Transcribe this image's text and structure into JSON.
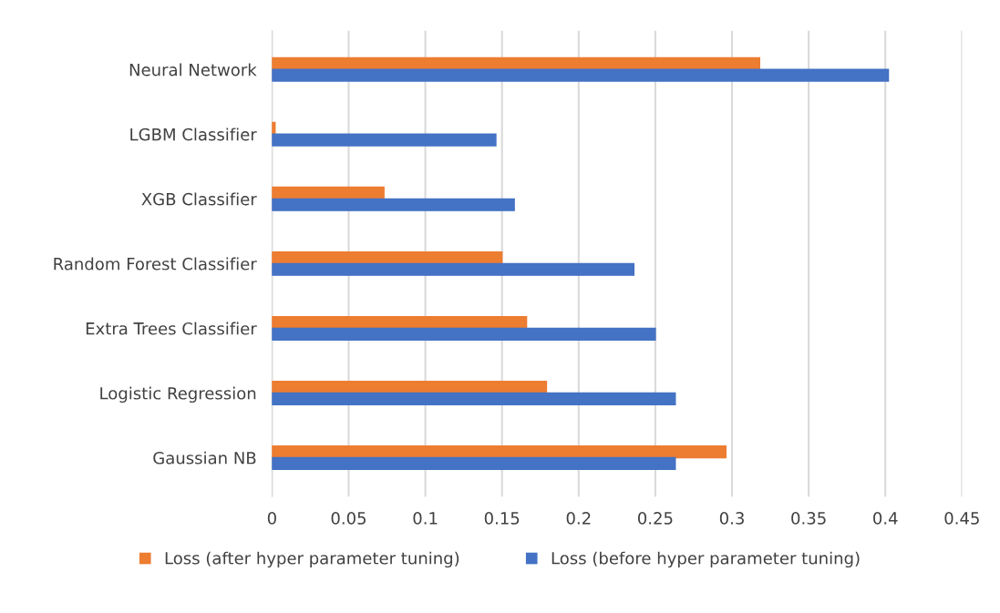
{
  "chart_data": {
    "type": "bar",
    "orientation": "horizontal",
    "categories": [
      "Neural Network",
      "LGBM Classifier",
      "XGB Classifier",
      "Random Forest Classifier",
      "Extra Trees Classifier",
      "Logistic Regression",
      "Gaussian NB"
    ],
    "series": [
      {
        "name": "Loss (after hyper parameter tuning)",
        "color": "#ed7d31",
        "values": [
          0.318,
          0.002,
          0.073,
          0.15,
          0.166,
          0.179,
          0.296
        ]
      },
      {
        "name": "Loss (before hyper parameter tuning)",
        "color": "#4472c4",
        "values": [
          0.402,
          0.146,
          0.158,
          0.236,
          0.25,
          0.263,
          0.263
        ]
      }
    ],
    "xlim": [
      0,
      0.45
    ],
    "xticks": [
      0,
      0.05,
      0.1,
      0.15,
      0.2,
      0.25,
      0.3,
      0.35,
      0.4,
      0.45
    ],
    "grid": "x",
    "legend": "bottom"
  }
}
